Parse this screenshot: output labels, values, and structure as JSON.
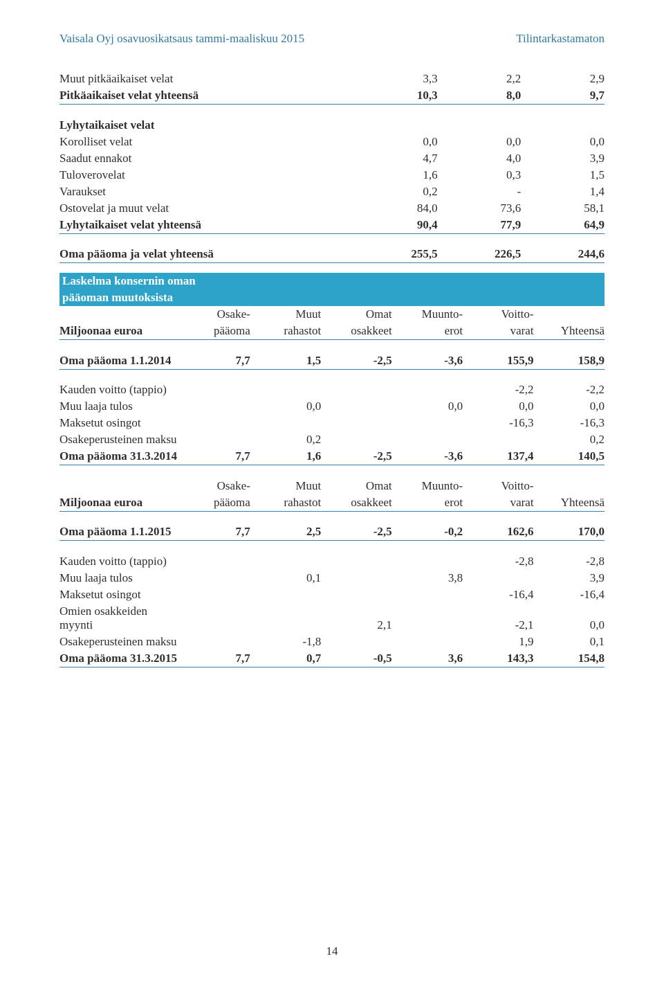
{
  "header": {
    "left": "Vaisala Oyj osavuosikatsaus tammi-maaliskuu 2015",
    "right": "Tilintarkastamaton"
  },
  "liab": {
    "rows": [
      {
        "label": "Muut pitkäaikaiset velat",
        "v": [
          "3,3",
          "2,2",
          "2,9"
        ],
        "bold": false
      },
      {
        "label": "Pitkäaikaiset velat yhteensä",
        "v": [
          "10,3",
          "8,0",
          "9,7"
        ],
        "bold": true
      }
    ],
    "short_hdr": "Lyhytaikaiset velat",
    "short": [
      {
        "label": "Korolliset velat",
        "v": [
          "0,0",
          "0,0",
          "0,0"
        ]
      },
      {
        "label": "Saadut ennakot",
        "v": [
          "4,7",
          "4,0",
          "3,9"
        ]
      },
      {
        "label": "Tuloverovelat",
        "v": [
          "1,6",
          "0,3",
          "1,5"
        ]
      },
      {
        "label": "Varaukset",
        "v": [
          "0,2",
          "-",
          "1,4"
        ]
      },
      {
        "label": "Ostovelat ja muut velat",
        "v": [
          "84,0",
          "73,6",
          "58,1"
        ]
      }
    ],
    "short_tot": {
      "label": "Lyhytaikaiset velat yhteensä",
      "v": [
        "90,4",
        "77,9",
        "64,9"
      ]
    },
    "grand": {
      "label": "Oma pääoma ja velat yhteensä",
      "v": [
        "255,5",
        "226,5",
        "244,6"
      ]
    }
  },
  "equity": {
    "band1": "Laskelma konsernin oman",
    "band2": "pääoman muutoksista",
    "cols": {
      "c1": "Miljoonaa euroa",
      "c2a": "Osake-",
      "c2b": "pääoma",
      "c3a": "Muut",
      "c3b": "rahastot",
      "c4a": "Omat",
      "c4b": "osakkeet",
      "c5a": "Muunto-",
      "c5b": "erot",
      "c6a": "Voitto-",
      "c6b": "varat",
      "c7": "Yhteensä"
    },
    "open14": {
      "label": "Oma pääoma 1.1.2014",
      "v": [
        "7,7",
        "1,5",
        "-2,5",
        "-3,6",
        "155,9",
        "158,9"
      ]
    },
    "mv14": [
      {
        "label": "Kauden voitto (tappio)",
        "v": [
          "",
          "",
          "",
          "",
          "-2,2",
          "-2,2"
        ]
      },
      {
        "label": "Muu laaja tulos",
        "v": [
          "",
          "0,0",
          "",
          "0,0",
          "0,0",
          "0,0"
        ]
      },
      {
        "label": "Maksetut osingot",
        "v": [
          "",
          "",
          "",
          "",
          "-16,3",
          "-16,3"
        ]
      },
      {
        "label": "Osakeperusteinen maksu",
        "v": [
          "",
          "0,2",
          "",
          "",
          "",
          "0,2"
        ]
      }
    ],
    "close14": {
      "label": "Oma pääoma 31.3.2014",
      "v": [
        "7,7",
        "1,6",
        "-2,5",
        "-3,6",
        "137,4",
        "140,5"
      ]
    },
    "open15": {
      "label": "Oma pääoma 1.1.2015",
      "v": [
        "7,7",
        "2,5",
        "-2,5",
        "-0,2",
        "162,6",
        "170,0"
      ]
    },
    "mv15": [
      {
        "label": "Kauden voitto (tappio)",
        "v": [
          "",
          "",
          "",
          "",
          "-2,8",
          "-2,8"
        ]
      },
      {
        "label": "Muu laaja tulos",
        "v": [
          "",
          "0,1",
          "",
          "3,8",
          "",
          "3,9"
        ]
      },
      {
        "label": "Maksetut osingot",
        "v": [
          "",
          "",
          "",
          "",
          "-16,4",
          "-16,4"
        ]
      },
      {
        "label": "Omien osakkeiden myynti",
        "v": [
          "",
          "",
          "2,1",
          "",
          "-2,1",
          "0,0"
        ]
      },
      {
        "label": "Osakeperusteinen maksu",
        "v": [
          "",
          "-1,8",
          "",
          "",
          "1,9",
          "0,1"
        ]
      }
    ],
    "close15": {
      "label": "Oma pääoma 31.3.2015",
      "v": [
        "7,7",
        "0,7",
        "-0,5",
        "3,6",
        "143,3",
        "154,8"
      ]
    }
  },
  "page": "14"
}
